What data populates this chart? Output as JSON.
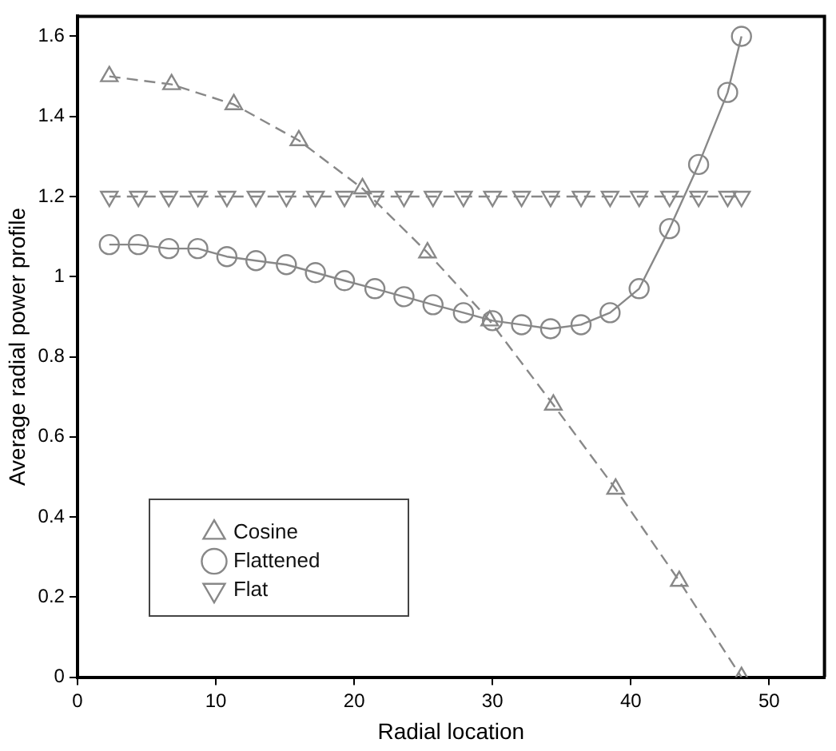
{
  "chart_data": {
    "type": "line",
    "xlabel": "Radial location",
    "ylabel": "Average radial power profile",
    "xlim": [
      0,
      54
    ],
    "xticks": [
      0,
      10,
      20,
      30,
      40,
      50
    ],
    "ylim": [
      0,
      1.65
    ],
    "yticks": [
      0,
      {
        "value": 0.2,
        "label": "0.2"
      },
      {
        "value": 0.4,
        "label": "0.4"
      },
      {
        "value": 0.6,
        "label": "0.6"
      },
      {
        "value": 0.8,
        "label": "0.8"
      },
      1,
      {
        "value": 1.2,
        "label": "1.2"
      },
      {
        "value": 1.4,
        "label": "1.4"
      },
      {
        "value": 1.6,
        "label": "1.6"
      }
    ],
    "grid": false,
    "legend": "bottom left",
    "series": [
      {
        "name": "Cosine",
        "color": "#888888",
        "marker": "triangle",
        "line_style": "dashed",
        "x": [
          2.3,
          6.8,
          11.3,
          16.0,
          20.6,
          25.3,
          29.8,
          34.4,
          38.9,
          43.5,
          48.0
        ],
        "values": [
          1.5,
          1.48,
          1.43,
          1.34,
          1.22,
          1.06,
          0.89,
          0.68,
          0.47,
          0.24,
          0
        ]
      },
      {
        "name": "Flattened",
        "color": "#888888",
        "marker": "circle",
        "line_style": "solid",
        "x": [
          2.3,
          4.4,
          6.6,
          8.7,
          10.8,
          12.9,
          15.1,
          17.2,
          19.3,
          21.5,
          23.6,
          25.7,
          27.9,
          30.0,
          32.1,
          34.2,
          36.4,
          38.5,
          40.6,
          42.8,
          44.9,
          47.0,
          48.0
        ],
        "values": [
          1.08,
          1.08,
          1.07,
          1.07,
          1.05,
          1.04,
          1.03,
          1.01,
          0.99,
          0.97,
          0.95,
          0.93,
          0.91,
          0.89,
          0.88,
          0.87,
          0.88,
          0.91,
          0.97,
          1.12,
          1.28,
          1.46,
          1.6
        ]
      },
      {
        "name": "Flat",
        "color": "#888888",
        "marker": "triangle-down",
        "line_style": "dashed",
        "x": [
          2.3,
          4.4,
          6.6,
          8.7,
          10.8,
          12.9,
          15.1,
          17.2,
          19.3,
          21.5,
          23.6,
          25.7,
          27.9,
          30.0,
          32.1,
          34.2,
          36.4,
          38.5,
          40.6,
          42.8,
          44.9,
          47.0,
          48.0
        ],
        "values": [
          1.2,
          1.2,
          1.2,
          1.2,
          1.2,
          1.2,
          1.2,
          1.2,
          1.2,
          1.2,
          1.2,
          1.2,
          1.2,
          1.2,
          1.2,
          1.2,
          1.2,
          1.2,
          1.2,
          1.2,
          1.2,
          1.2,
          1.2
        ]
      }
    ]
  }
}
